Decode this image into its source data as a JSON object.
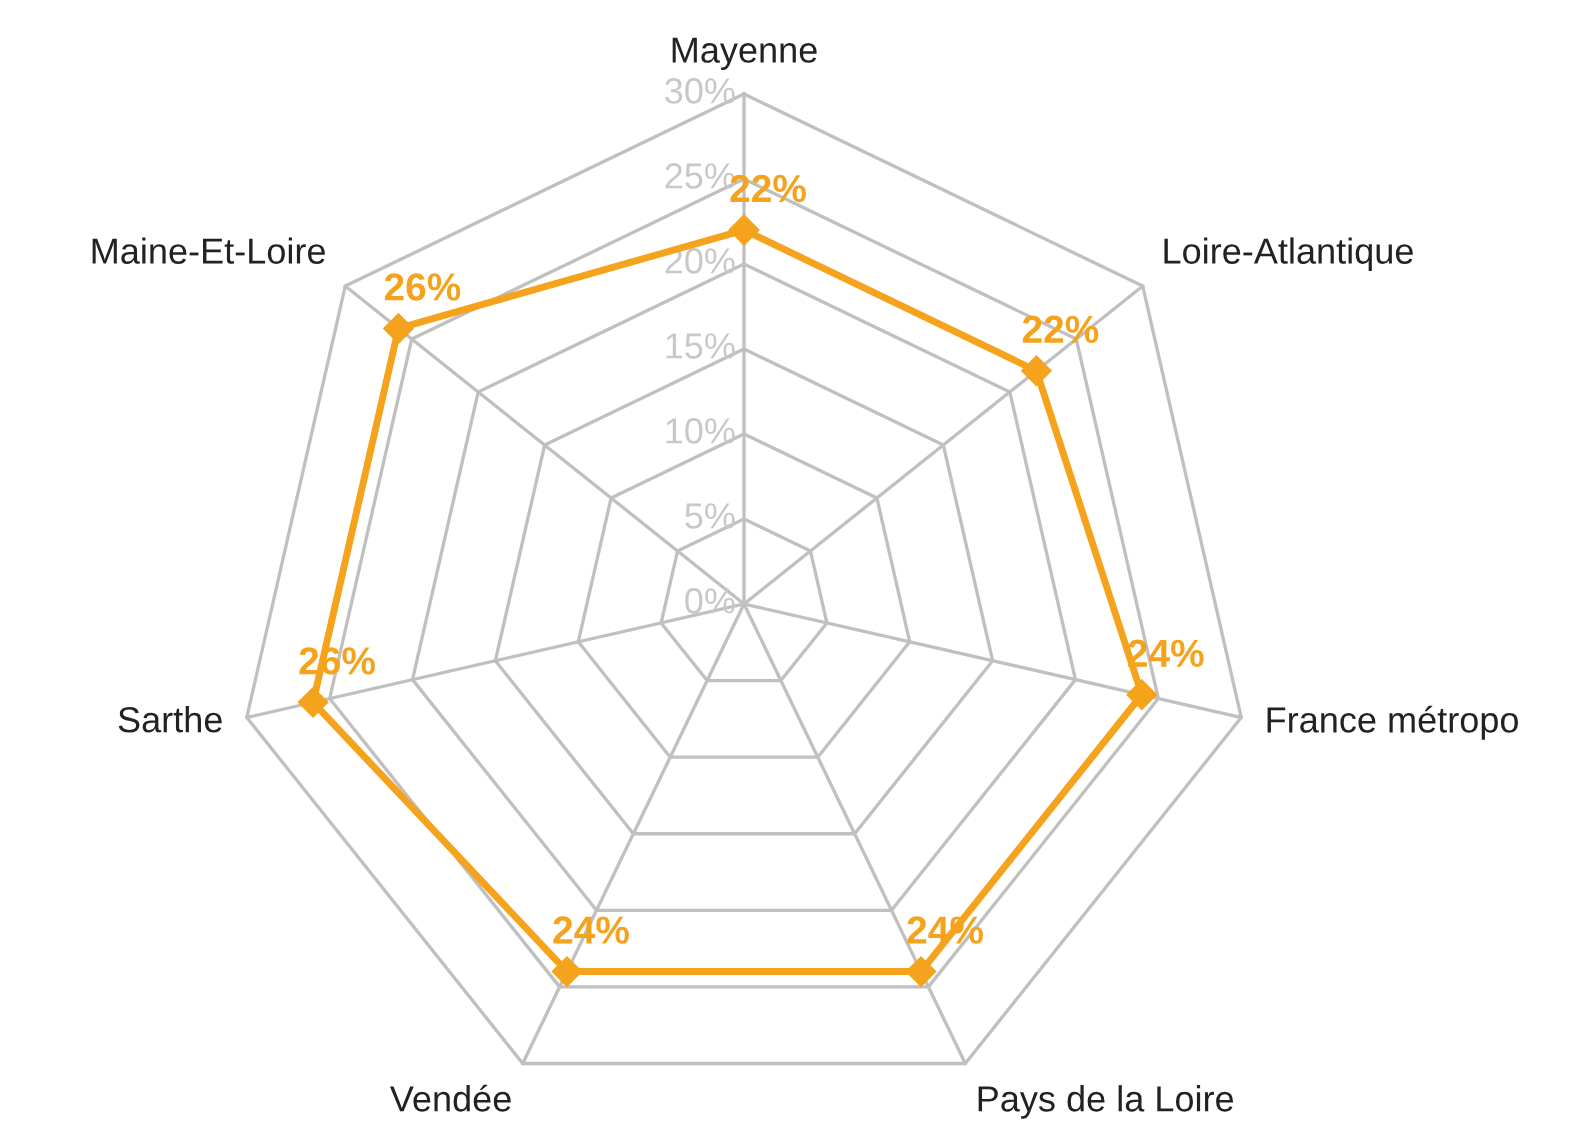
{
  "chart_data": {
    "type": "radar",
    "categories": [
      "Mayenne",
      "Loire-Atlantique",
      "France métropo",
      "Pays de la Loire",
      "Vendée",
      "Sarthe",
      "Maine-Et-Loire"
    ],
    "series": [
      {
        "color": "#f5a31c",
        "values": [
          22,
          22,
          24,
          24,
          24,
          26,
          26
        ],
        "value_labels": [
          "22%",
          "22%",
          "24%",
          "24%",
          "24%",
          "26%",
          "26%"
        ]
      }
    ],
    "ylim": [
      0,
      30
    ],
    "yticks": [
      {
        "value": 0,
        "label": "0%"
      },
      {
        "value": 5,
        "label": "5%"
      },
      {
        "value": 10,
        "label": "10%"
      },
      {
        "value": 15,
        "label": "15%"
      },
      {
        "value": 20,
        "label": "20%"
      },
      {
        "value": 25,
        "label": "25%"
      },
      {
        "value": 30,
        "label": "30%"
      }
    ],
    "marker": "diamond",
    "grid": true
  }
}
